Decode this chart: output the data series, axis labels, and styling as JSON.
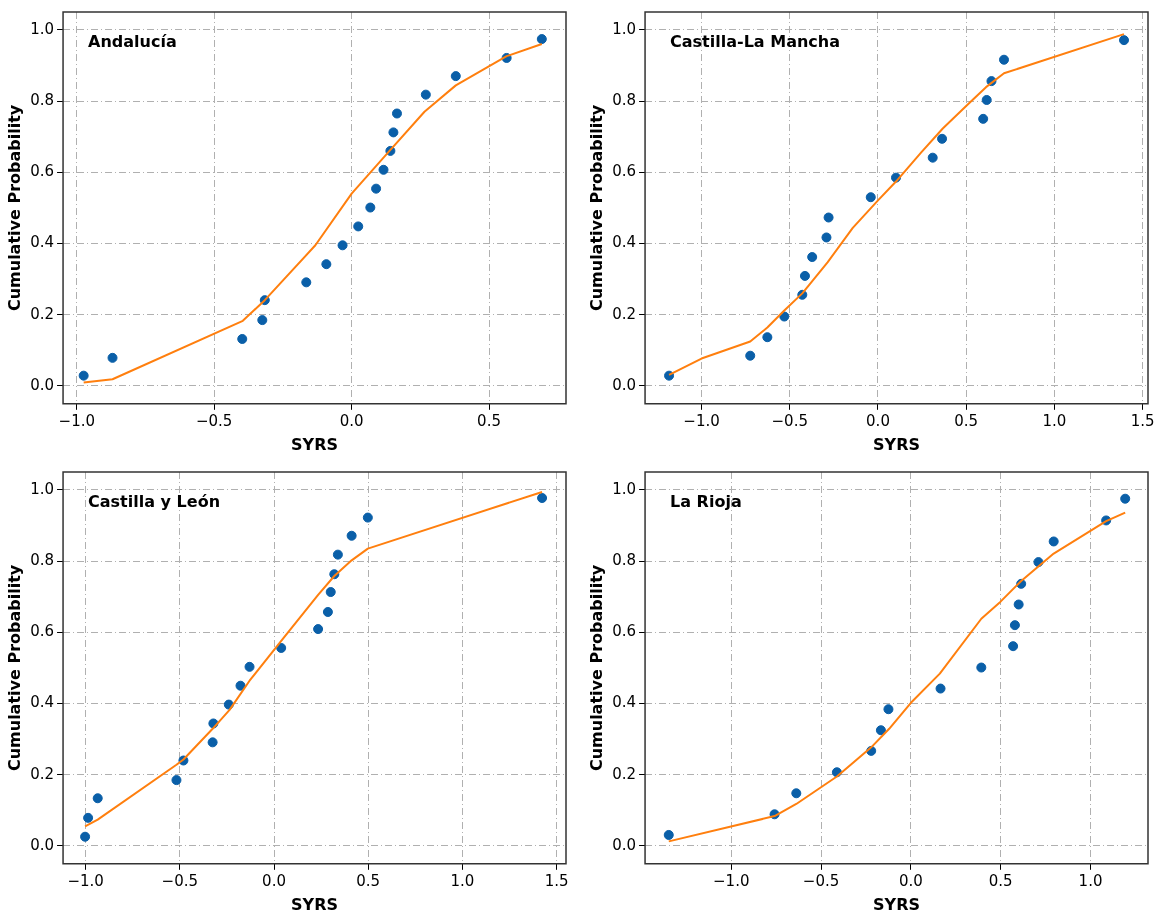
{
  "chart_data": [
    {
      "type": "scatter",
      "title": "Andalucía",
      "xlabel": "SYRS",
      "ylabel": "Cumulative Probability",
      "grid": true,
      "xlim": [
        -1.05,
        0.78
      ],
      "xticks": [
        {
          "value": -1,
          "label": "−1.0"
        },
        {
          "value": -0.5,
          "label": "−0.5"
        },
        {
          "value": 0,
          "label": "0.0"
        },
        {
          "value": 0.5,
          "label": "0.5"
        }
      ],
      "ylim": [
        -0.05,
        1.05
      ],
      "yticks": [
        {
          "value": 0,
          "label": "0.0"
        },
        {
          "value": 0.2,
          "label": "0.2"
        },
        {
          "value": 0.4,
          "label": "0.4"
        },
        {
          "value": 0.6,
          "label": "0.6"
        },
        {
          "value": 0.8,
          "label": "0.8"
        },
        {
          "value": 1,
          "label": "1.0"
        }
      ],
      "series": [
        {
          "type": "scatter",
          "color": "#0a5fa8",
          "x": [
            -0.975,
            -0.87,
            -0.398,
            -0.325,
            -0.316,
            -0.165,
            -0.092,
            -0.033,
            0.024,
            0.068,
            0.089,
            0.116,
            0.141,
            0.152,
            0.165,
            0.27,
            0.379,
            0.564,
            0.692
          ],
          "values": [
            0.029,
            0.079,
            0.132,
            0.185,
            0.241,
            0.291,
            0.342,
            0.395,
            0.448,
            0.501,
            0.554,
            0.607,
            0.66,
            0.712,
            0.765,
            0.818,
            0.87,
            0.921,
            0.974
          ]
        },
        {
          "type": "line",
          "color": "#ff7f0e",
          "marker": "none",
          "x": [
            -0.975,
            -0.87,
            -0.396,
            -0.316,
            -0.132,
            0.0,
            0.133,
            0.265,
            0.379,
            0.564,
            0.692
          ],
          "values": [
            0.01,
            0.019,
            0.183,
            0.241,
            0.395,
            0.54,
            0.656,
            0.77,
            0.844,
            0.926,
            0.96
          ]
        }
      ]
    },
    {
      "type": "scatter",
      "title": "Castilla-La Mancha",
      "xlabel": "SYRS",
      "ylabel": "Cumulative Probability",
      "grid": true,
      "xlim": [
        -1.32,
        1.53
      ],
      "xticks": [
        {
          "value": -1,
          "label": "−1.0"
        },
        {
          "value": -0.5,
          "label": "−0.5"
        },
        {
          "value": 0,
          "label": "0.0"
        },
        {
          "value": 0.5,
          "label": "0.5"
        },
        {
          "value": 1,
          "label": "1.0"
        },
        {
          "value": 1.5,
          "label": "1.5"
        }
      ],
      "ylim": [
        -0.05,
        1.05
      ],
      "yticks": [
        {
          "value": 0,
          "label": "0.0"
        },
        {
          "value": 0.2,
          "label": "0.2"
        },
        {
          "value": 0.4,
          "label": "0.4"
        },
        {
          "value": 0.6,
          "label": "0.6"
        },
        {
          "value": 0.8,
          "label": "0.8"
        },
        {
          "value": 1,
          "label": "1.0"
        }
      ],
      "series": [
        {
          "type": "scatter",
          "color": "#0a5fa8",
          "x": [
            -1.184,
            -0.724,
            -0.627,
            -0.531,
            -0.429,
            -0.414,
            -0.373,
            -0.292,
            -0.28,
            -0.041,
            0.102,
            0.31,
            0.363,
            0.596,
            0.616,
            0.643,
            0.714,
            1.394
          ],
          "values": [
            0.029,
            0.085,
            0.137,
            0.195,
            0.256,
            0.309,
            0.362,
            0.417,
            0.473,
            0.53,
            0.585,
            0.641,
            0.694,
            0.75,
            0.803,
            0.856,
            0.916,
            0.971
          ]
        },
        {
          "type": "line",
          "color": "#ff7f0e",
          "marker": "none",
          "x": [
            -1.184,
            -1.0,
            -0.724,
            -0.627,
            -0.531,
            -0.429,
            -0.286,
            -0.143,
            0.0,
            0.102,
            0.245,
            0.367,
            0.51,
            0.612,
            0.714,
            1.394
          ],
          "values": [
            0.031,
            0.077,
            0.125,
            0.164,
            0.212,
            0.26,
            0.347,
            0.444,
            0.521,
            0.574,
            0.656,
            0.723,
            0.791,
            0.839,
            0.878,
            0.988
          ]
        }
      ]
    },
    {
      "type": "scatter",
      "title": "Castilla y León",
      "xlabel": "SYRS",
      "ylabel": "Cumulative Probability",
      "grid": true,
      "xlim": [
        -1.12,
        1.55
      ],
      "xticks": [
        {
          "value": -1,
          "label": "−1.0"
        },
        {
          "value": -0.5,
          "label": "−0.5"
        },
        {
          "value": 0,
          "label": "0.0"
        },
        {
          "value": 0.5,
          "label": "0.5"
        },
        {
          "value": 1,
          "label": "1.0"
        },
        {
          "value": 1.5,
          "label": "1.5"
        }
      ],
      "ylim": [
        -0.05,
        1.05
      ],
      "yticks": [
        {
          "value": 0,
          "label": "0.0"
        },
        {
          "value": 0.2,
          "label": "0.2"
        },
        {
          "value": 0.4,
          "label": "0.4"
        },
        {
          "value": 0.6,
          "label": "0.6"
        },
        {
          "value": 0.8,
          "label": "0.8"
        },
        {
          "value": 1,
          "label": "1.0"
        }
      ],
      "series": [
        {
          "type": "scatter",
          "color": "#0a5fa8",
          "x": [
            -1.003,
            -0.987,
            -0.936,
            -0.518,
            -0.481,
            -0.326,
            -0.322,
            -0.24,
            -0.178,
            -0.13,
            0.038,
            0.234,
            0.286,
            0.301,
            0.32,
            0.339,
            0.412,
            0.498,
            1.423
          ],
          "values": [
            0.026,
            0.079,
            0.134,
            0.185,
            0.24,
            0.291,
            0.344,
            0.397,
            0.45,
            0.503,
            0.556,
            0.609,
            0.657,
            0.713,
            0.763,
            0.818,
            0.871,
            0.922,
            0.977
          ]
        },
        {
          "type": "line",
          "color": "#ff7f0e",
          "marker": "none",
          "x": [
            -1.003,
            -0.936,
            -0.518,
            -0.481,
            -0.326,
            -0.236,
            -0.13,
            0.052,
            0.234,
            0.32,
            0.412,
            0.498,
            1.423
          ],
          "values": [
            0.055,
            0.074,
            0.228,
            0.243,
            0.329,
            0.382,
            0.464,
            0.585,
            0.705,
            0.758,
            0.802,
            0.835,
            0.994
          ]
        }
      ]
    },
    {
      "type": "scatter",
      "title": "La Rioja",
      "xlabel": "SYRS",
      "ylabel": "Cumulative Probability",
      "grid": true,
      "xlim": [
        -1.48,
        1.32
      ],
      "xticks": [
        {
          "value": -1,
          "label": "−1.0"
        },
        {
          "value": -0.5,
          "label": "−0.5"
        },
        {
          "value": 0,
          "label": "0.0"
        },
        {
          "value": 0.5,
          "label": "0.5"
        },
        {
          "value": 1,
          "label": "1.0"
        }
      ],
      "ylim": [
        -0.05,
        1.05
      ],
      "yticks": [
        {
          "value": 0,
          "label": "0.0"
        },
        {
          "value": 0.2,
          "label": "0.2"
        },
        {
          "value": 0.4,
          "label": "0.4"
        },
        {
          "value": 0.6,
          "label": "0.6"
        },
        {
          "value": 0.8,
          "label": "0.8"
        },
        {
          "value": 1,
          "label": "1.0"
        }
      ],
      "series": [
        {
          "type": "scatter",
          "color": "#0a5fa8",
          "x": [
            -1.348,
            -0.759,
            -0.638,
            -0.412,
            -0.221,
            -0.167,
            -0.125,
            0.165,
            0.392,
            0.569,
            0.579,
            0.6,
            0.614,
            0.71,
            0.795,
            1.087,
            1.193
          ],
          "values": [
            0.031,
            0.089,
            0.148,
            0.207,
            0.267,
            0.325,
            0.384,
            0.442,
            0.501,
            0.561,
            0.62,
            0.678,
            0.736,
            0.797,
            0.855,
            0.914,
            0.975
          ]
        },
        {
          "type": "line",
          "color": "#ff7f0e",
          "marker": "none",
          "x": [
            -1.348,
            -0.759,
            -0.638,
            -0.412,
            -0.221,
            -0.121,
            0.0,
            0.161,
            0.392,
            0.499,
            0.614,
            0.795,
            1.087,
            1.193
          ],
          "values": [
            0.013,
            0.084,
            0.118,
            0.195,
            0.277,
            0.329,
            0.402,
            0.484,
            0.638,
            0.686,
            0.744,
            0.821,
            0.912,
            0.936
          ]
        }
      ]
    }
  ]
}
